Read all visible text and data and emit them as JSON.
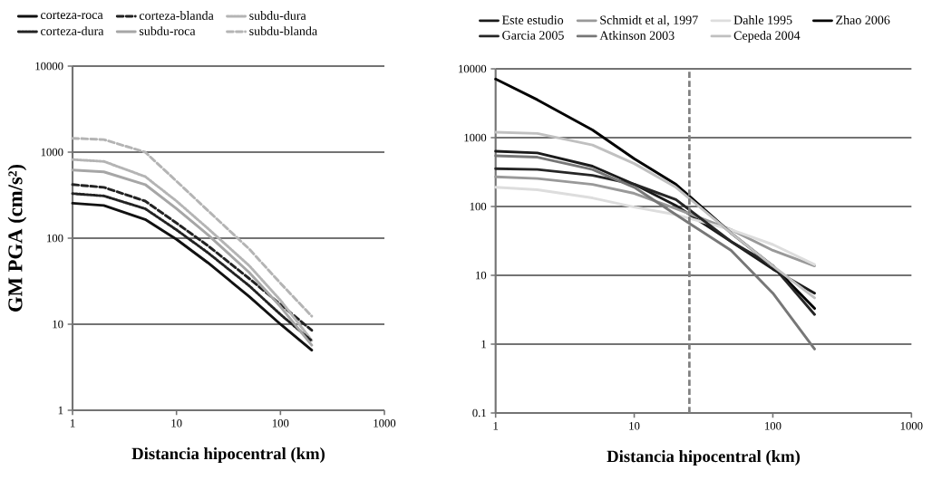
{
  "chart_data": [
    {
      "type": "line",
      "log": "xy",
      "grid": "y",
      "legend": "top",
      "xlabel": "Distancia hipocentral (km)",
      "ylabel": "GM PGA (cm/s²)",
      "x": [
        1,
        2,
        5,
        10,
        20,
        50,
        100,
        200
      ],
      "xlim": [
        1,
        1000
      ],
      "ylim": [
        1,
        10000
      ],
      "xticks": [
        1,
        10,
        100,
        1000
      ],
      "yticks": [
        1,
        10,
        100,
        1000,
        10000
      ],
      "series": [
        {
          "name": "corteza-roca",
          "color": "#111111",
          "line_style": "solid",
          "values": [
            255,
            240,
            165,
            97,
            52,
            21,
            10,
            5
          ]
        },
        {
          "name": "corteza-blanda",
          "color": "#222222",
          "line_style": "dashed",
          "values": [
            420,
            390,
            270,
            150,
            82,
            34,
            17,
            8.5
          ]
        },
        {
          "name": "subdu-dura",
          "color": "#b4b4b4",
          "line_style": "dotted",
          "values": [
            820,
            780,
            520,
            270,
            130,
            48,
            19,
            6.5
          ]
        },
        {
          "name": "corteza-dura",
          "color": "#222222",
          "line_style": "dotted",
          "values": [
            330,
            310,
            220,
            125,
            68,
            28,
            13,
            6.4
          ]
        },
        {
          "name": "subdu-roca",
          "color": "#a6a6a6",
          "line_style": "solid",
          "values": [
            620,
            590,
            420,
            220,
            110,
            40,
            16,
            5.7
          ]
        },
        {
          "name": "subdu-blanda",
          "color": "#b4b4b4",
          "line_style": "dashed",
          "values": [
            1450,
            1400,
            1000,
            460,
            210,
            75,
            30,
            12.4
          ]
        }
      ]
    },
    {
      "type": "line",
      "log": "xy",
      "grid": "y",
      "legend": "top",
      "xlabel": "Distancia hipocentral (km)",
      "x": [
        1,
        2,
        5,
        10,
        20,
        50,
        100,
        200
      ],
      "xlim": [
        1,
        1000
      ],
      "ylim": [
        0.1,
        10000
      ],
      "xticks": [
        1,
        10,
        100,
        1000
      ],
      "yticks": [
        0.1,
        1,
        10,
        100,
        1000,
        10000
      ],
      "ref_lines": [
        {
          "axis": "x",
          "value": 25,
          "color": "#7f7f7f",
          "line_style": "dashed"
        }
      ],
      "series": [
        {
          "name": "Este estudio",
          "color": "#1a1a1a",
          "values": [
            635,
            600,
            385,
            210,
            103,
            31,
            12.3,
            5.5
          ]
        },
        {
          "name": "Schmidt et al, 1997",
          "color": "#999999",
          "values": [
            270,
            255,
            209,
            155,
            93,
            46,
            23,
            13.7
          ]
        },
        {
          "name": "Dahle 1995",
          "color": "#dddddd",
          "values": [
            190,
            175,
            133,
            98,
            76,
            46,
            28,
            14.3
          ]
        },
        {
          "name": "Zhao 2006",
          "color": "#000000",
          "values": [
            7100,
            3550,
            1290,
            495,
            210,
            41,
            13.7,
            3.3
          ]
        },
        {
          "name": "Garcia 2005",
          "color": "#262626",
          "values": [
            355,
            345,
            283,
            210,
            126,
            31,
            13.7,
            2.7
          ]
        },
        {
          "name": "Atkinson 2003",
          "color": "#777777",
          "values": [
            545,
            520,
            345,
            190,
            76,
            23,
            5.5,
            0.85
          ]
        },
        {
          "name": "Cepeda 2004",
          "color": "#c0c0c0",
          "values": [
            1200,
            1150,
            780,
            420,
            190,
            41,
            13.7,
            4.7
          ]
        }
      ]
    }
  ]
}
